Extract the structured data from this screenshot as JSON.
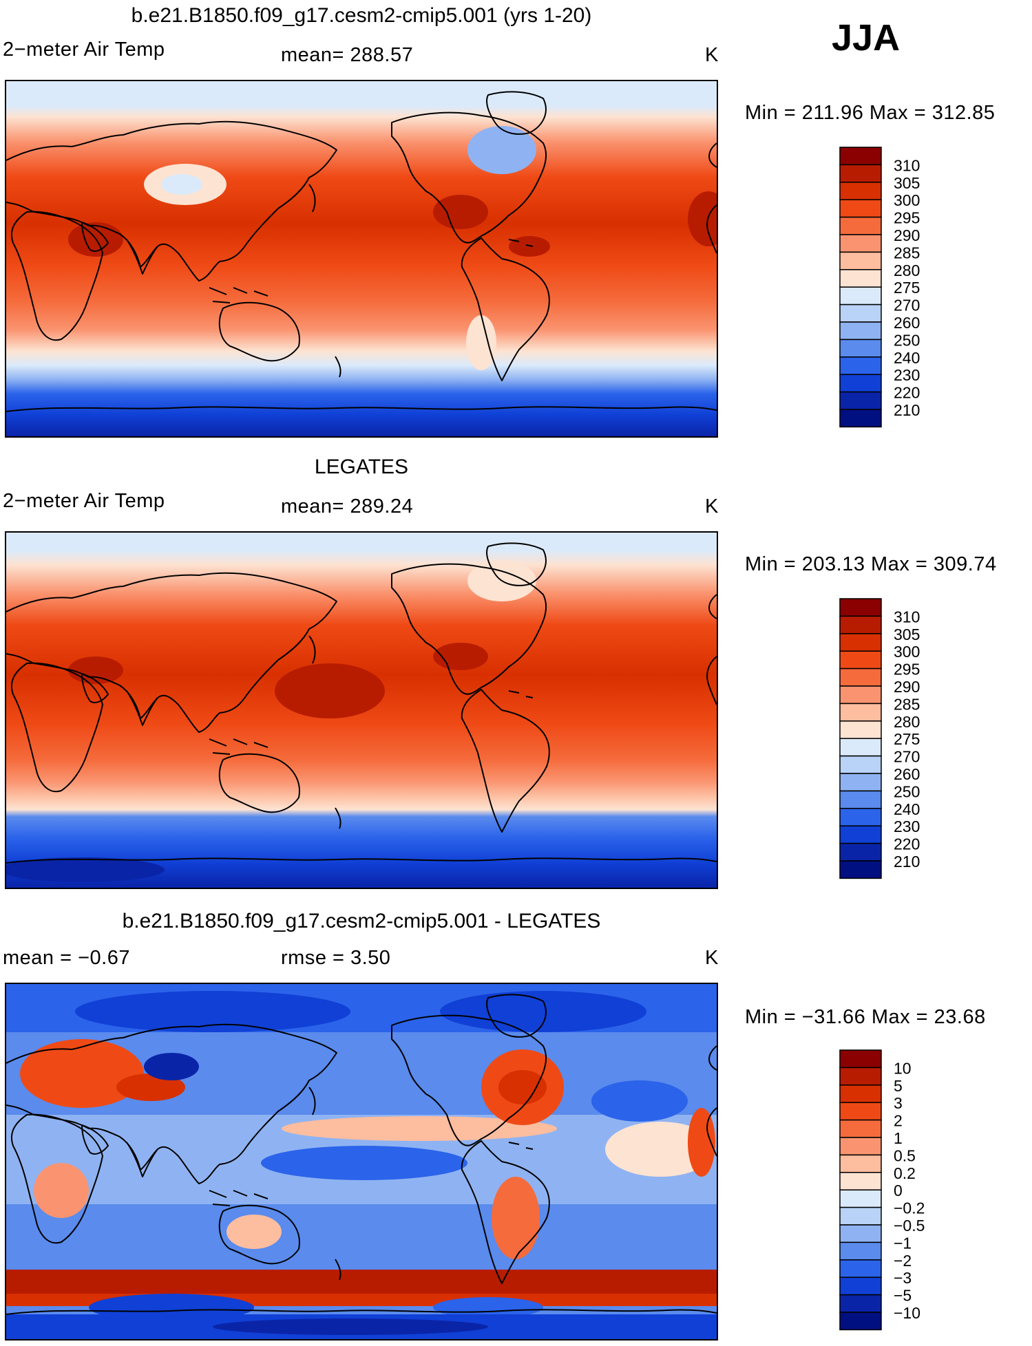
{
  "season_label": "JJA",
  "panels": [
    {
      "id": "model",
      "title": "b.e21.B1850.f09_g17.cesm2-cmip5.001 (yrs 1-20)",
      "left_label": "2−meter Air Temp",
      "center_label": "mean=  288.57",
      "units": "K",
      "minmax": "Min  =  211.96  Max  =  312.85",
      "colorbar": {
        "labels": [
          "310",
          "305",
          "300",
          "295",
          "290",
          "285",
          "280",
          "275",
          "270",
          "260",
          "250",
          "240",
          "230",
          "220",
          "210"
        ],
        "colors": [
          "#8b0000",
          "#b81c00",
          "#d83000",
          "#ef4a16",
          "#f56b3c",
          "#fa9470",
          "#fdbd9f",
          "#fde3d2",
          "#dbeafa",
          "#b9d2f7",
          "#8fb3f2",
          "#5a8bed",
          "#2b63ea",
          "#1040d6",
          "#0a24a8",
          "#001080"
        ]
      }
    },
    {
      "id": "obs",
      "title": "LEGATES",
      "left_label": "2−meter Air Temp",
      "center_label": "mean=  289.24",
      "units": "K",
      "minmax": "Min  =  203.13  Max  =  309.74",
      "colorbar": {
        "labels": [
          "310",
          "305",
          "300",
          "295",
          "290",
          "285",
          "280",
          "275",
          "270",
          "260",
          "250",
          "240",
          "230",
          "220",
          "210"
        ],
        "colors": [
          "#8b0000",
          "#b81c00",
          "#d83000",
          "#ef4a16",
          "#f56b3c",
          "#fa9470",
          "#fdbd9f",
          "#fde3d2",
          "#dbeafa",
          "#b9d2f7",
          "#8fb3f2",
          "#5a8bed",
          "#2b63ea",
          "#1040d6",
          "#0a24a8",
          "#001080"
        ]
      }
    },
    {
      "id": "diff",
      "title": "b.e21.B1850.f09_g17.cesm2-cmip5.001 - LEGATES",
      "left_label": "mean  =   −0.67",
      "center_label": "rmse  =     3.50",
      "units": "K",
      "minmax": "Min  = −31.66  Max  =    23.68",
      "colorbar": {
        "labels": [
          "10",
          "5",
          "3",
          "2",
          "1",
          "0.5",
          "0.2",
          "0",
          "−0.2",
          "−0.5",
          "−1",
          "−2",
          "−3",
          "−5",
          "−10"
        ],
        "colors": [
          "#8b0000",
          "#b81c00",
          "#d83000",
          "#ef4a16",
          "#f56b3c",
          "#fa9470",
          "#fdbd9f",
          "#fde3d2",
          "#dbeafa",
          "#b9d2f7",
          "#8fb3f2",
          "#5a8bed",
          "#2b63ea",
          "#1040d6",
          "#0a24a8",
          "#001080"
        ]
      }
    }
  ]
}
